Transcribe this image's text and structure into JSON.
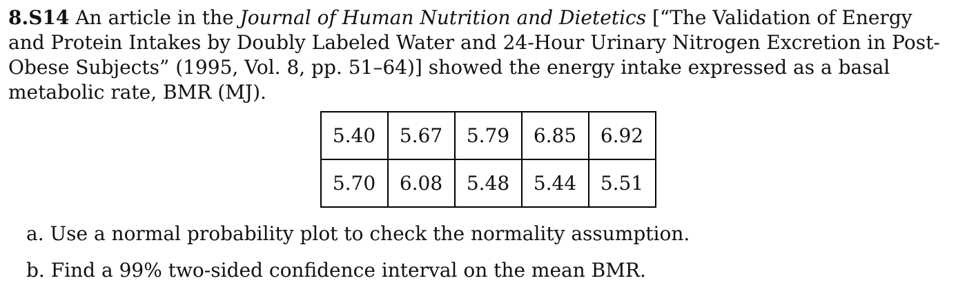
{
  "problem": {
    "number": "8.S14",
    "line1_pre": " An article in the ",
    "line1_italic": "Journal of Human Nutrition and Dietetics",
    "line1_post": " [“The Validation of Energy",
    "line2": "and Protein Intakes by Doubly Labeled Water and 24-Hour Urinary Nitrogen Excretion in Post-",
    "line3": "Obese Subjects” (1995, Vol. 8, pp. 51–64)] showed the energy intake expressed as a basal",
    "line4": "metabolic rate, BMR (MJ)."
  },
  "table": {
    "rows": [
      [
        "5.40",
        "5.67",
        "5.79",
        "6.85",
        "6.92"
      ],
      [
        "5.70",
        "6.08",
        "5.48",
        "5.44",
        "5.51"
      ]
    ]
  },
  "questions": [
    {
      "label": "a.",
      "text": "Use a normal probability plot to check the normality assumption."
    },
    {
      "label": "b.",
      "text": "Find a 99% two-sided confidence interval on the mean BMR."
    }
  ]
}
